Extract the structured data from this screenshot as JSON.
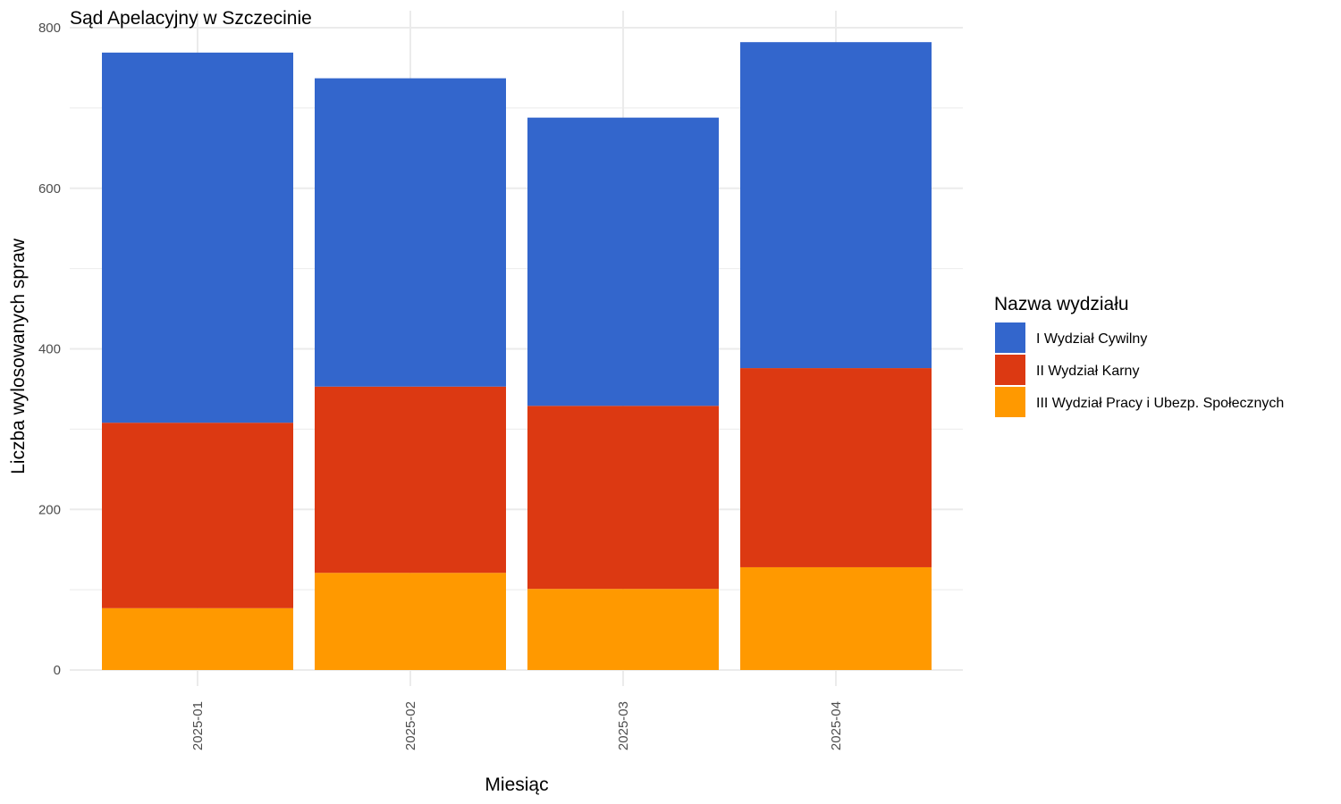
{
  "chart_data": {
    "type": "bar",
    "stacked": true,
    "title": "Sąd Apelacyjny w Szczecinie",
    "xlabel": "Miesiąc",
    "ylabel": "Liczba wylosowanych spraw",
    "categories": [
      "2025-01",
      "2025-02",
      "2025-03",
      "2025-04"
    ],
    "ylim": [
      0,
      800
    ],
    "yticks": [
      0,
      200,
      400,
      600,
      800
    ],
    "grid": true,
    "legend": {
      "title": "Nazwa wydziału",
      "position": "right"
    },
    "series": [
      {
        "name": "III Wydział Pracy i Ubezp. Społecznych",
        "color": "#FF9900",
        "values": [
          77,
          121,
          101,
          128
        ]
      },
      {
        "name": "II Wydział Karny",
        "color": "#DC3912",
        "values": [
          231,
          232,
          228,
          248
        ]
      },
      {
        "name": "I Wydział Cywilny",
        "color": "#3366CC",
        "values": [
          461,
          384,
          359,
          406
        ]
      }
    ],
    "legend_order": [
      "I Wydział Cywilny",
      "II Wydział Karny",
      "III Wydział Pracy i Ubezp. Społecznych"
    ]
  }
}
